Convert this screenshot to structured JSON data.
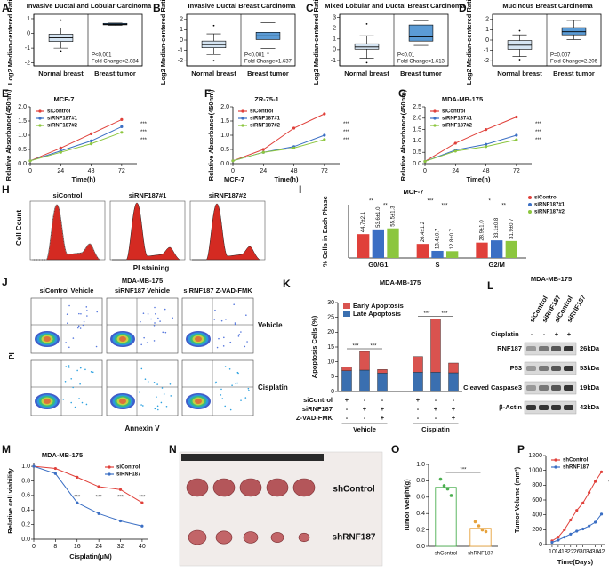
{
  "chart_data": [
    {
      "panel": "A",
      "type": "box",
      "title": "Invasive Ductal and Lobular Carcinoma",
      "y_label": "Log2 Median-centered Ratio",
      "categories": [
        "Normal breast",
        "Breast tumor"
      ],
      "colors": [
        "#d5e4f2",
        "#5b9bd5"
      ],
      "boxes": [
        {
          "min": -1.0,
          "q1": -0.55,
          "median": -0.3,
          "q3": -0.05,
          "max": 0.35
        },
        {
          "min": 0.55,
          "q1": 0.58,
          "median": 0.62,
          "q3": 0.68,
          "max": 0.7
        }
      ],
      "outliers": [
        [
          0.9,
          -1.2
        ],
        []
      ],
      "ylim": [
        -2.2,
        1.3
      ],
      "yticks": [
        1,
        0,
        -1,
        -2
      ],
      "annotations": [
        "P<0.001",
        "Fold Change=2.084"
      ]
    },
    {
      "panel": "B",
      "type": "box",
      "title": "Invasive Ductal Breast Carcinoma",
      "y_label": "Log2 Median-centered Ratio",
      "categories": [
        "Normal breast",
        "Breast tumor"
      ],
      "colors": [
        "#d5e4f2",
        "#5b9bd5"
      ],
      "boxes": [
        {
          "min": -1.4,
          "q1": -0.75,
          "median": -0.45,
          "q3": -0.1,
          "max": 0.6
        },
        {
          "min": -0.8,
          "q1": 0.05,
          "median": 0.4,
          "q3": 0.75,
          "max": 1.7
        }
      ],
      "outliers": [
        [
          1.4,
          -2.0
        ],
        [
          -1.3
        ]
      ],
      "ylim": [
        -2.5,
        2.5
      ],
      "yticks": [
        2,
        1,
        0,
        -1,
        -2
      ],
      "annotations": [
        "P<0.001",
        "Fold Change=1.637"
      ]
    },
    {
      "panel": "C",
      "type": "box",
      "title": "Mixed Lobular and Ductal Breast Carcinoma",
      "y_label": "Log2 Median-centered Ratio",
      "categories": [
        "Normal breast",
        "Breast tumor"
      ],
      "colors": [
        "#d5e4f2",
        "#5b9bd5"
      ],
      "boxes": [
        {
          "min": -0.8,
          "q1": 0.05,
          "median": 0.25,
          "q3": 0.55,
          "max": 1.3
        },
        {
          "min": 0.4,
          "q1": 0.8,
          "median": 1.2,
          "q3": 2.3,
          "max": 2.7
        }
      ],
      "outliers": [
        [
          2.4,
          -1.2
        ],
        []
      ],
      "ylim": [
        -1.5,
        3.3
      ],
      "yticks": [
        3,
        2,
        1,
        0,
        -1
      ],
      "annotations": [
        "P<0.01",
        "Fold Change=1.613"
      ]
    },
    {
      "panel": "D",
      "type": "box",
      "title": "Mucinous Breast Carcinoma",
      "y_label": "Log2 Median-centered Ratio",
      "categories": [
        "Normal breast",
        "Breast tumor"
      ],
      "colors": [
        "#d5e4f2",
        "#5b9bd5"
      ],
      "boxes": [
        {
          "min": -1.6,
          "q1": -0.9,
          "median": -0.5,
          "q3": -0.05,
          "max": 0.5
        },
        {
          "min": 0.05,
          "q1": 0.5,
          "median": 0.8,
          "q3": 1.2,
          "max": 1.9
        }
      ],
      "outliers": [
        [
          0.9,
          -1.9
        ],
        []
      ],
      "ylim": [
        -2.5,
        2.5
      ],
      "yticks": [
        2,
        1,
        0,
        -1,
        -2
      ],
      "annotations": [
        "P=0.007",
        "Fold Change=2.206"
      ]
    },
    {
      "panel": "E",
      "type": "line",
      "title": "MCF-7",
      "y_label": "Relative Absorbance(450nm)",
      "x_label": "Time(h)",
      "x": [
        0,
        24,
        48,
        72
      ],
      "xlim": [
        0,
        84
      ],
      "xticks": [
        0,
        24,
        48,
        72
      ],
      "ylim": [
        0,
        2
      ],
      "yticks": [
        {
          "value": 0,
          "label": "0.0"
        },
        {
          "value": 0.5,
          "label": "0.5"
        },
        {
          "value": 1,
          "label": "1.0"
        },
        {
          "value": 1.5,
          "label": "1.5"
        },
        {
          "value": 2,
          "label": "2.0"
        }
      ],
      "legend": "upper left",
      "series": [
        {
          "name": "siControl",
          "color": "#e0403a",
          "values": [
            0.1,
            0.55,
            1.05,
            1.55
          ]
        },
        {
          "name": "siRNF187#1",
          "color": "#3b6fc4",
          "values": [
            0.1,
            0.45,
            0.8,
            1.3
          ]
        },
        {
          "name": "siRNF187#2",
          "color": "#8cc63f",
          "values": [
            0.1,
            0.4,
            0.7,
            1.1
          ]
        }
      ],
      "significance": [
        "***",
        "***",
        "***"
      ]
    },
    {
      "panel": "F",
      "type": "line",
      "title": "ZR-75-1",
      "note": "MCF-7",
      "y_label": "Relative Absorbance(450nm)",
      "x_label": "Time(h)",
      "x": [
        0,
        24,
        48,
        72
      ],
      "xlim": [
        0,
        84
      ],
      "xticks": [
        0,
        24,
        48,
        72
      ],
      "ylim": [
        0,
        2
      ],
      "yticks": [
        {
          "value": 0,
          "label": "0.0"
        },
        {
          "value": 0.5,
          "label": "0.5"
        },
        {
          "value": 1,
          "label": "1.0"
        },
        {
          "value": 1.5,
          "label": "1.5"
        },
        {
          "value": 2,
          "label": "2.0"
        }
      ],
      "legend": "upper left",
      "series": [
        {
          "name": "siControl",
          "color": "#e0403a",
          "values": [
            0.1,
            0.5,
            1.25,
            1.75
          ]
        },
        {
          "name": "siRNF187#1",
          "color": "#3b6fc4",
          "values": [
            0.1,
            0.4,
            0.6,
            1.0
          ]
        },
        {
          "name": "siRNF187#2",
          "color": "#8cc63f",
          "values": [
            0.1,
            0.4,
            0.55,
            0.85
          ]
        }
      ],
      "significance": [
        "***",
        "***",
        "***"
      ]
    },
    {
      "panel": "G",
      "type": "line",
      "title": "MDA-MB-175",
      "y_label": "Relative Absorbance(450nm)",
      "x_label": "Time(h)",
      "x": [
        0,
        24,
        48,
        72
      ],
      "xlim": [
        0,
        84
      ],
      "xticks": [
        0,
        24,
        48,
        72
      ],
      "ylim": [
        0,
        2.5
      ],
      "yticks": [
        {
          "value": 0,
          "label": "0.0"
        },
        {
          "value": 0.5,
          "label": "0.5"
        },
        {
          "value": 1,
          "label": "1.0"
        },
        {
          "value": 1.5,
          "label": "1.5"
        },
        {
          "value": 2,
          "label": "2.0"
        },
        {
          "value": 2.5,
          "label": "2.5"
        }
      ],
      "legend": "upper left",
      "series": [
        {
          "name": "siControl",
          "color": "#e0403a",
          "values": [
            0.1,
            0.9,
            1.5,
            2.05
          ]
        },
        {
          "name": "siRNF187#1",
          "color": "#3b6fc4",
          "values": [
            0.1,
            0.6,
            0.85,
            1.25
          ]
        },
        {
          "name": "siRNF187#2",
          "color": "#8cc63f",
          "values": [
            0.1,
            0.55,
            0.75,
            1.05
          ]
        }
      ],
      "significance": [
        "***",
        "***",
        "***"
      ]
    },
    {
      "panel": "I",
      "type": "grouped_bar",
      "title": "MCF-7",
      "y_label": "% Cells in Each Phase",
      "categories": [
        "G0/G1",
        "S",
        "G2/M"
      ],
      "ylim": [
        0,
        100
      ],
      "legend": "upper right",
      "series": [
        {
          "name": "siControl",
          "color": "#e0403a",
          "values": [
            44.7,
            26.4,
            28.9
          ],
          "value_labels": [
            "44.7±2.1",
            "26.4±1.2",
            "28.9±1.0"
          ]
        },
        {
          "name": "siRNF187#1",
          "color": "#3b6fc4",
          "values": [
            53.6,
            13.4,
            33.1
          ],
          "value_labels": [
            "53.6±1.0",
            "13.4±0.7",
            "33.1±0.8"
          ]
        },
        {
          "name": "siRNF187#2",
          "color": "#8cc63f",
          "values": [
            55.5,
            12.8,
            31.9
          ],
          "value_labels": [
            "55.5±1.3",
            "12.8±0.7",
            "31.9±0.7"
          ]
        }
      ],
      "significance": [
        "**",
        "**",
        "***",
        "***",
        "*",
        "**"
      ]
    },
    {
      "panel": "K",
      "type": "stacked_bar",
      "title": "MDA-MB-175",
      "y_label": "Apoptosis Cells (%)",
      "ylim": [
        0,
        30
      ],
      "yticks": [
        0,
        5,
        10,
        15,
        20,
        25,
        30
      ],
      "legend": "upper left",
      "series": [
        {
          "name": "Early Apoptosis",
          "color": "#d9534f",
          "values": [
            1.3,
            6.3,
            1.2,
            5.3,
            18,
            3.3
          ]
        },
        {
          "name": "Late Apoptosis",
          "color": "#3a6fb0",
          "values": [
            7,
            7.2,
            6.2,
            6.5,
            6.5,
            6.3
          ]
        }
      ],
      "conditions": [
        {
          "name": "siControl",
          "marks": [
            "+",
            "-",
            "-",
            "+",
            "-",
            "-"
          ]
        },
        {
          "name": "siRNF187",
          "marks": [
            "-",
            "+",
            "+",
            "-",
            "+",
            "+"
          ]
        },
        {
          "name": "Z-VAD-FMK",
          "marks": [
            "-",
            "-",
            "+",
            "-",
            "-",
            "+"
          ]
        }
      ],
      "groups": [
        "Vehicle",
        "Cisplatin"
      ],
      "significance": [
        "***",
        "***",
        "***",
        "***"
      ]
    },
    {
      "panel": "M",
      "type": "line",
      "title": "MDA-MB-175",
      "y_label": "Relative cell viability",
      "x_label": "Cisplatin(μM)",
      "x": [
        0,
        8,
        16,
        24,
        32,
        40
      ],
      "xlim": [
        0,
        42
      ],
      "xticks": [
        0,
        8,
        16,
        24,
        32,
        40
      ],
      "ylim": [
        0,
        1.05
      ],
      "yticks": [
        {
          "value": 0,
          "label": "0.0"
        },
        {
          "value": 0.2,
          "label": "0.2"
        },
        {
          "value": 0.4,
          "label": "0.4"
        },
        {
          "value": 0.6,
          "label": "0.6"
        },
        {
          "value": 0.8,
          "label": "0.8"
        },
        {
          "value": 1,
          "label": "1.0"
        }
      ],
      "legend": "upper right",
      "series": [
        {
          "name": "siControl",
          "color": "#e0403a",
          "values": [
            1.0,
            0.97,
            0.85,
            0.72,
            0.68,
            0.5
          ]
        },
        {
          "name": "siRNF187",
          "color": "#3b6fc4",
          "values": [
            1.0,
            0.9,
            0.5,
            0.35,
            0.25,
            0.18
          ]
        }
      ],
      "significance": [
        "***",
        "***",
        "***",
        "***"
      ]
    },
    {
      "panel": "O",
      "type": "dot",
      "y_label": "Tumor Weight(g)",
      "categories": [
        "shControl",
        "shRNF187"
      ],
      "values": [
        0.72,
        0.22
      ],
      "points": [
        [
          0.82,
          0.74,
          0.7,
          0.62
        ],
        [
          0.3,
          0.25,
          0.2,
          0.18
        ]
      ],
      "colors": [
        "#4caf50",
        "#e6a23c"
      ],
      "ylim": [
        0,
        1.0
      ],
      "yticks": [
        {
          "value": 0,
          "label": "0.0"
        },
        {
          "value": 0.2,
          "label": "0.2"
        },
        {
          "value": 0.4,
          "label": "0.4"
        },
        {
          "value": 0.6,
          "label": "0.6"
        },
        {
          "value": 0.8,
          "label": "0.8"
        },
        {
          "value": 1,
          "label": "1.0"
        }
      ],
      "significance": [
        "***"
      ]
    },
    {
      "panel": "P",
      "type": "line",
      "y_label": "Tumor Volume (mm³)",
      "x_label": "Time(Days)",
      "x": [
        10,
        14,
        18,
        22,
        26,
        30,
        34,
        38,
        42
      ],
      "xlim": [
        6,
        44
      ],
      "xticks": [
        10,
        14,
        18,
        22,
        26,
        30,
        34,
        38,
        42
      ],
      "ylim": [
        0,
        1200
      ],
      "yticks": [
        0,
        200,
        400,
        600,
        800,
        1000,
        1200
      ],
      "legend": "upper left",
      "series": [
        {
          "name": "shControl",
          "color": "#e0403a",
          "values": [
            50,
            100,
            200,
            330,
            460,
            560,
            700,
            850,
            980
          ]
        },
        {
          "name": "shRNF187",
          "color": "#3b6fc4",
          "values": [
            30,
            60,
            100,
            140,
            180,
            210,
            250,
            300,
            410
          ]
        }
      ],
      "significance": [
        "***"
      ]
    }
  ],
  "panels": {
    "H": {
      "panel": "H",
      "titles": [
        "siControl",
        "siRNF187#1",
        "siRNF187#2"
      ],
      "y_label": "Cell Count",
      "x_label": "PI staining"
    },
    "J": {
      "panel": "J",
      "title": "MDA-MB-175",
      "columns": [
        "siControl Vehicle",
        "siRNF187 Vehicle",
        "siRNF187 Z-VAD-FMK"
      ],
      "rows": [
        "Vehicle",
        "Cisplatin"
      ],
      "y_label": "PI",
      "x_label": "Annexin V"
    },
    "L": {
      "panel": "L",
      "title": "MDA-MB-175",
      "lanes": [
        "siControl",
        "siRNF187",
        "siControl",
        "siRNF187"
      ],
      "treatment": "Cisplatin",
      "treatment_marks": [
        "-",
        "-",
        "+",
        "+"
      ],
      "proteins": [
        {
          "name": "RNF187",
          "size": "26kDa"
        },
        {
          "name": "P53",
          "size": "53kDa"
        },
        {
          "name": "Cleaved Caspase3",
          "size": "19kDa"
        },
        {
          "name": "β-Actin",
          "size": "42kDa"
        }
      ]
    },
    "N": {
      "panel": "N",
      "groups": [
        "shControl",
        "shRNF187"
      ]
    }
  }
}
